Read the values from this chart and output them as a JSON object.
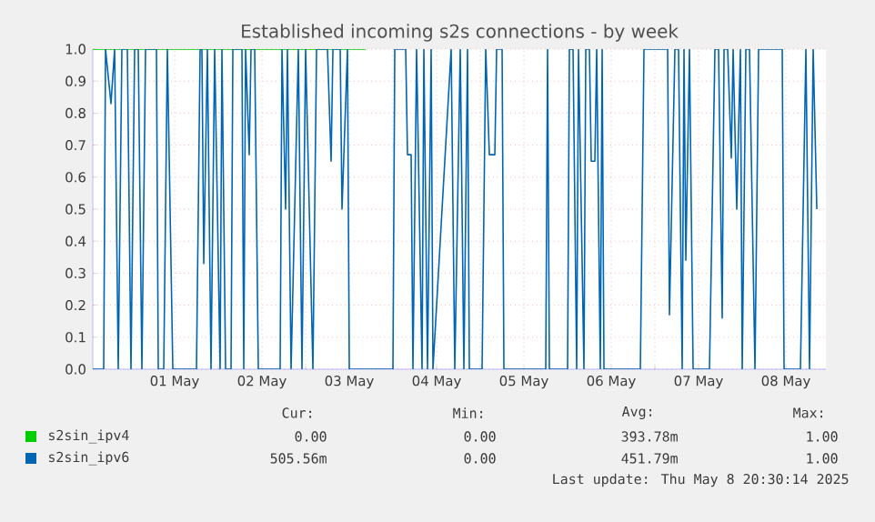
{
  "chart_data": {
    "type": "line",
    "title": "Established incoming s2s connections - by week",
    "xlim": [
      "2025-04-30T13:30",
      "2025-05-08T23:00"
    ],
    "xticks": [
      {
        "value": "2025-05-01T00:00",
        "label": null
      },
      {
        "value": "2025-05-01T12:00",
        "label": "01 May"
      },
      {
        "value": "2025-05-02T00:00",
        "label": null
      },
      {
        "value": "2025-05-02T12:00",
        "label": "02 May"
      },
      {
        "value": "2025-05-03T00:00",
        "label": null
      },
      {
        "value": "2025-05-03T12:00",
        "label": "03 May"
      },
      {
        "value": "2025-05-04T00:00",
        "label": null
      },
      {
        "value": "2025-05-04T12:00",
        "label": "04 May"
      },
      {
        "value": "2025-05-05T00:00",
        "label": null
      },
      {
        "value": "2025-05-05T12:00",
        "label": "05 May"
      },
      {
        "value": "2025-05-06T00:00",
        "label": null
      },
      {
        "value": "2025-05-06T12:00",
        "label": "06 May"
      },
      {
        "value": "2025-05-07T00:00",
        "label": null
      },
      {
        "value": "2025-05-07T12:00",
        "label": "07 May"
      },
      {
        "value": "2025-05-08T00:00",
        "label": null
      },
      {
        "value": "2025-05-08T12:00",
        "label": "08 May"
      }
    ],
    "ylim": [
      0,
      1
    ],
    "yticks": [
      {
        "value": 0,
        "label": "0.0"
      },
      {
        "value": 0.1,
        "label": "0.1"
      },
      {
        "value": 0.2,
        "label": "0.2"
      },
      {
        "value": 0.3,
        "label": "0.3"
      },
      {
        "value": 0.4,
        "label": "0.4"
      },
      {
        "value": 0.5,
        "label": "0.5"
      },
      {
        "value": 0.6,
        "label": "0.6"
      },
      {
        "value": 0.7,
        "label": "0.7"
      },
      {
        "value": 0.8,
        "label": "0.8"
      },
      {
        "value": 0.9,
        "label": "0.9"
      },
      {
        "value": 1,
        "label": "1.0"
      }
    ],
    "grid": true,
    "legend": "bottom",
    "marker": "none",
    "series": [
      {
        "name": "s2sin_ipv4",
        "color": "#00cc00",
        "x": [
          "2025-04-30T13:30",
          "2025-05-03T16:30"
        ],
        "values": [
          1,
          1
        ]
      },
      {
        "name": "s2sin_ipv6",
        "color": "#0066b3",
        "x": [
          "2025-04-30T13:30",
          "2025-04-30T16:30",
          "2025-04-30T17:00",
          "2025-04-30T18:30",
          "2025-04-30T19:30",
          "2025-04-30T20:30",
          "2025-04-30T21:30",
          "2025-04-30T23:00",
          "2025-05-01T00:00",
          "2025-05-01T01:00",
          "2025-05-01T02:00",
          "2025-05-01T03:00",
          "2025-05-01T04:00",
          "2025-05-01T07:00",
          "2025-05-01T07:30",
          "2025-05-01T09:00",
          "2025-05-01T10:00",
          "2025-05-01T11:30",
          "2025-05-01T18:00",
          "2025-05-01T19:00",
          "2025-05-01T19:30",
          "2025-05-01T20:00",
          "2025-05-01T21:00",
          "2025-05-01T22:00",
          "2025-05-01T23:00",
          "2025-05-02T00:30",
          "2025-05-02T01:00",
          "2025-05-02T02:00",
          "2025-05-02T03:30",
          "2025-05-02T04:00",
          "2025-05-02T06:30",
          "2025-05-02T07:00",
          "2025-05-02T07:30",
          "2025-05-02T08:30",
          "2025-05-02T09:00",
          "2025-05-02T10:00",
          "2025-05-02T11:00",
          "2025-05-02T17:00",
          "2025-05-02T17:30",
          "2025-05-02T18:30",
          "2025-05-02T19:00",
          "2025-05-02T20:00",
          "2025-05-02T22:00",
          "2025-05-02T23:00",
          "2025-05-03T00:00",
          "2025-05-03T02:00",
          "2025-05-03T03:00",
          "2025-05-03T06:00",
          "2025-05-03T07:00",
          "2025-05-03T07:30",
          "2025-05-03T09:30",
          "2025-05-03T10:00",
          "2025-05-03T11:30",
          "2025-05-03T12:00",
          "2025-05-04T00:00",
          "2025-05-04T00:30",
          "2025-05-04T03:30",
          "2025-05-04T04:00",
          "2025-05-04T05:00",
          "2025-05-04T05:30",
          "2025-05-04T06:30",
          "2025-05-04T08:00",
          "2025-05-04T08:30",
          "2025-05-04T09:30",
          "2025-05-04T10:30",
          "2025-05-04T11:00",
          "2025-05-04T16:00",
          "2025-05-04T17:00",
          "2025-05-04T18:30",
          "2025-05-04T19:30",
          "2025-05-04T20:30",
          "2025-05-04T21:00",
          "2025-05-05T00:30",
          "2025-05-05T01:30",
          "2025-05-05T02:30",
          "2025-05-05T04:00",
          "2025-05-05T04:30",
          "2025-05-05T06:00",
          "2025-05-05T06:30",
          "2025-05-05T18:00",
          "2025-05-05T18:30",
          "2025-05-05T19:00",
          "2025-05-06T00:00",
          "2025-05-06T00:30",
          "2025-05-06T01:30",
          "2025-05-06T02:30",
          "2025-05-06T03:00",
          "2025-05-06T04:30",
          "2025-05-06T05:00",
          "2025-05-06T06:00",
          "2025-05-06T06:30",
          "2025-05-06T07:30",
          "2025-05-06T08:00",
          "2025-05-06T09:00",
          "2025-05-06T09:30",
          "2025-05-06T10:00",
          "2025-05-06T20:00",
          "2025-05-06T21:00",
          "2025-05-07T03:30",
          "2025-05-07T04:00",
          "2025-05-07T05:30",
          "2025-05-07T06:30",
          "2025-05-07T07:30",
          "2025-05-07T08:00",
          "2025-05-07T08:30",
          "2025-05-07T09:30",
          "2025-05-07T10:30",
          "2025-05-07T15:00",
          "2025-05-07T16:30",
          "2025-05-07T17:30",
          "2025-05-07T18:30",
          "2025-05-07T19:00",
          "2025-05-07T20:00",
          "2025-05-07T21:00",
          "2025-05-07T21:30",
          "2025-05-07T22:30",
          "2025-05-07T23:30",
          "2025-05-08T00:00",
          "2025-05-08T01:00",
          "2025-05-08T02:00",
          "2025-05-08T03:30",
          "2025-05-08T04:30",
          "2025-05-08T11:00",
          "2025-05-08T11:30",
          "2025-05-08T16:00",
          "2025-05-08T17:30",
          "2025-05-08T18:30",
          "2025-05-08T19:30",
          "2025-05-08T20:30"
        ],
        "values": [
          0,
          0,
          1,
          0.83,
          1,
          0,
          1,
          1,
          0,
          1,
          1,
          0,
          1,
          1,
          0,
          0,
          1,
          0,
          0,
          1,
          1,
          0.33,
          1,
          0,
          1,
          0,
          1,
          0,
          0,
          1,
          1,
          0,
          1,
          0.67,
          1,
          1,
          0,
          0,
          1,
          0.5,
          1,
          0,
          1,
          0,
          1,
          0,
          1,
          1,
          0.65,
          1,
          1,
          0.5,
          1,
          0,
          0,
          1,
          1,
          0.67,
          0.67,
          0,
          1,
          0,
          1,
          0,
          1,
          0,
          1,
          0,
          1,
          0,
          1,
          0,
          0,
          1,
          0.67,
          0.67,
          1,
          1,
          0,
          0,
          1,
          0,
          0,
          1,
          1,
          0,
          1,
          0,
          1,
          1,
          0.65,
          0.65,
          1,
          0,
          1,
          0,
          0,
          1,
          1,
          0.17,
          1,
          1,
          0,
          1,
          0.34,
          1,
          0,
          0,
          1,
          1,
          0.16,
          1,
          1,
          0.66,
          1,
          0.5,
          1,
          0,
          1,
          1,
          0,
          1,
          1,
          0,
          0,
          1,
          0,
          1,
          0.5
        ]
      }
    ],
    "annotations": [
      "Cur:",
      "Min:",
      "Avg:",
      "Max:",
      "0.00",
      "0.00",
      "393.78m",
      "1.00",
      "505.56m",
      "0.00",
      "451.79m",
      "1.00",
      "Last update: Thu May  8 20:30:14 2025"
    ]
  }
}
